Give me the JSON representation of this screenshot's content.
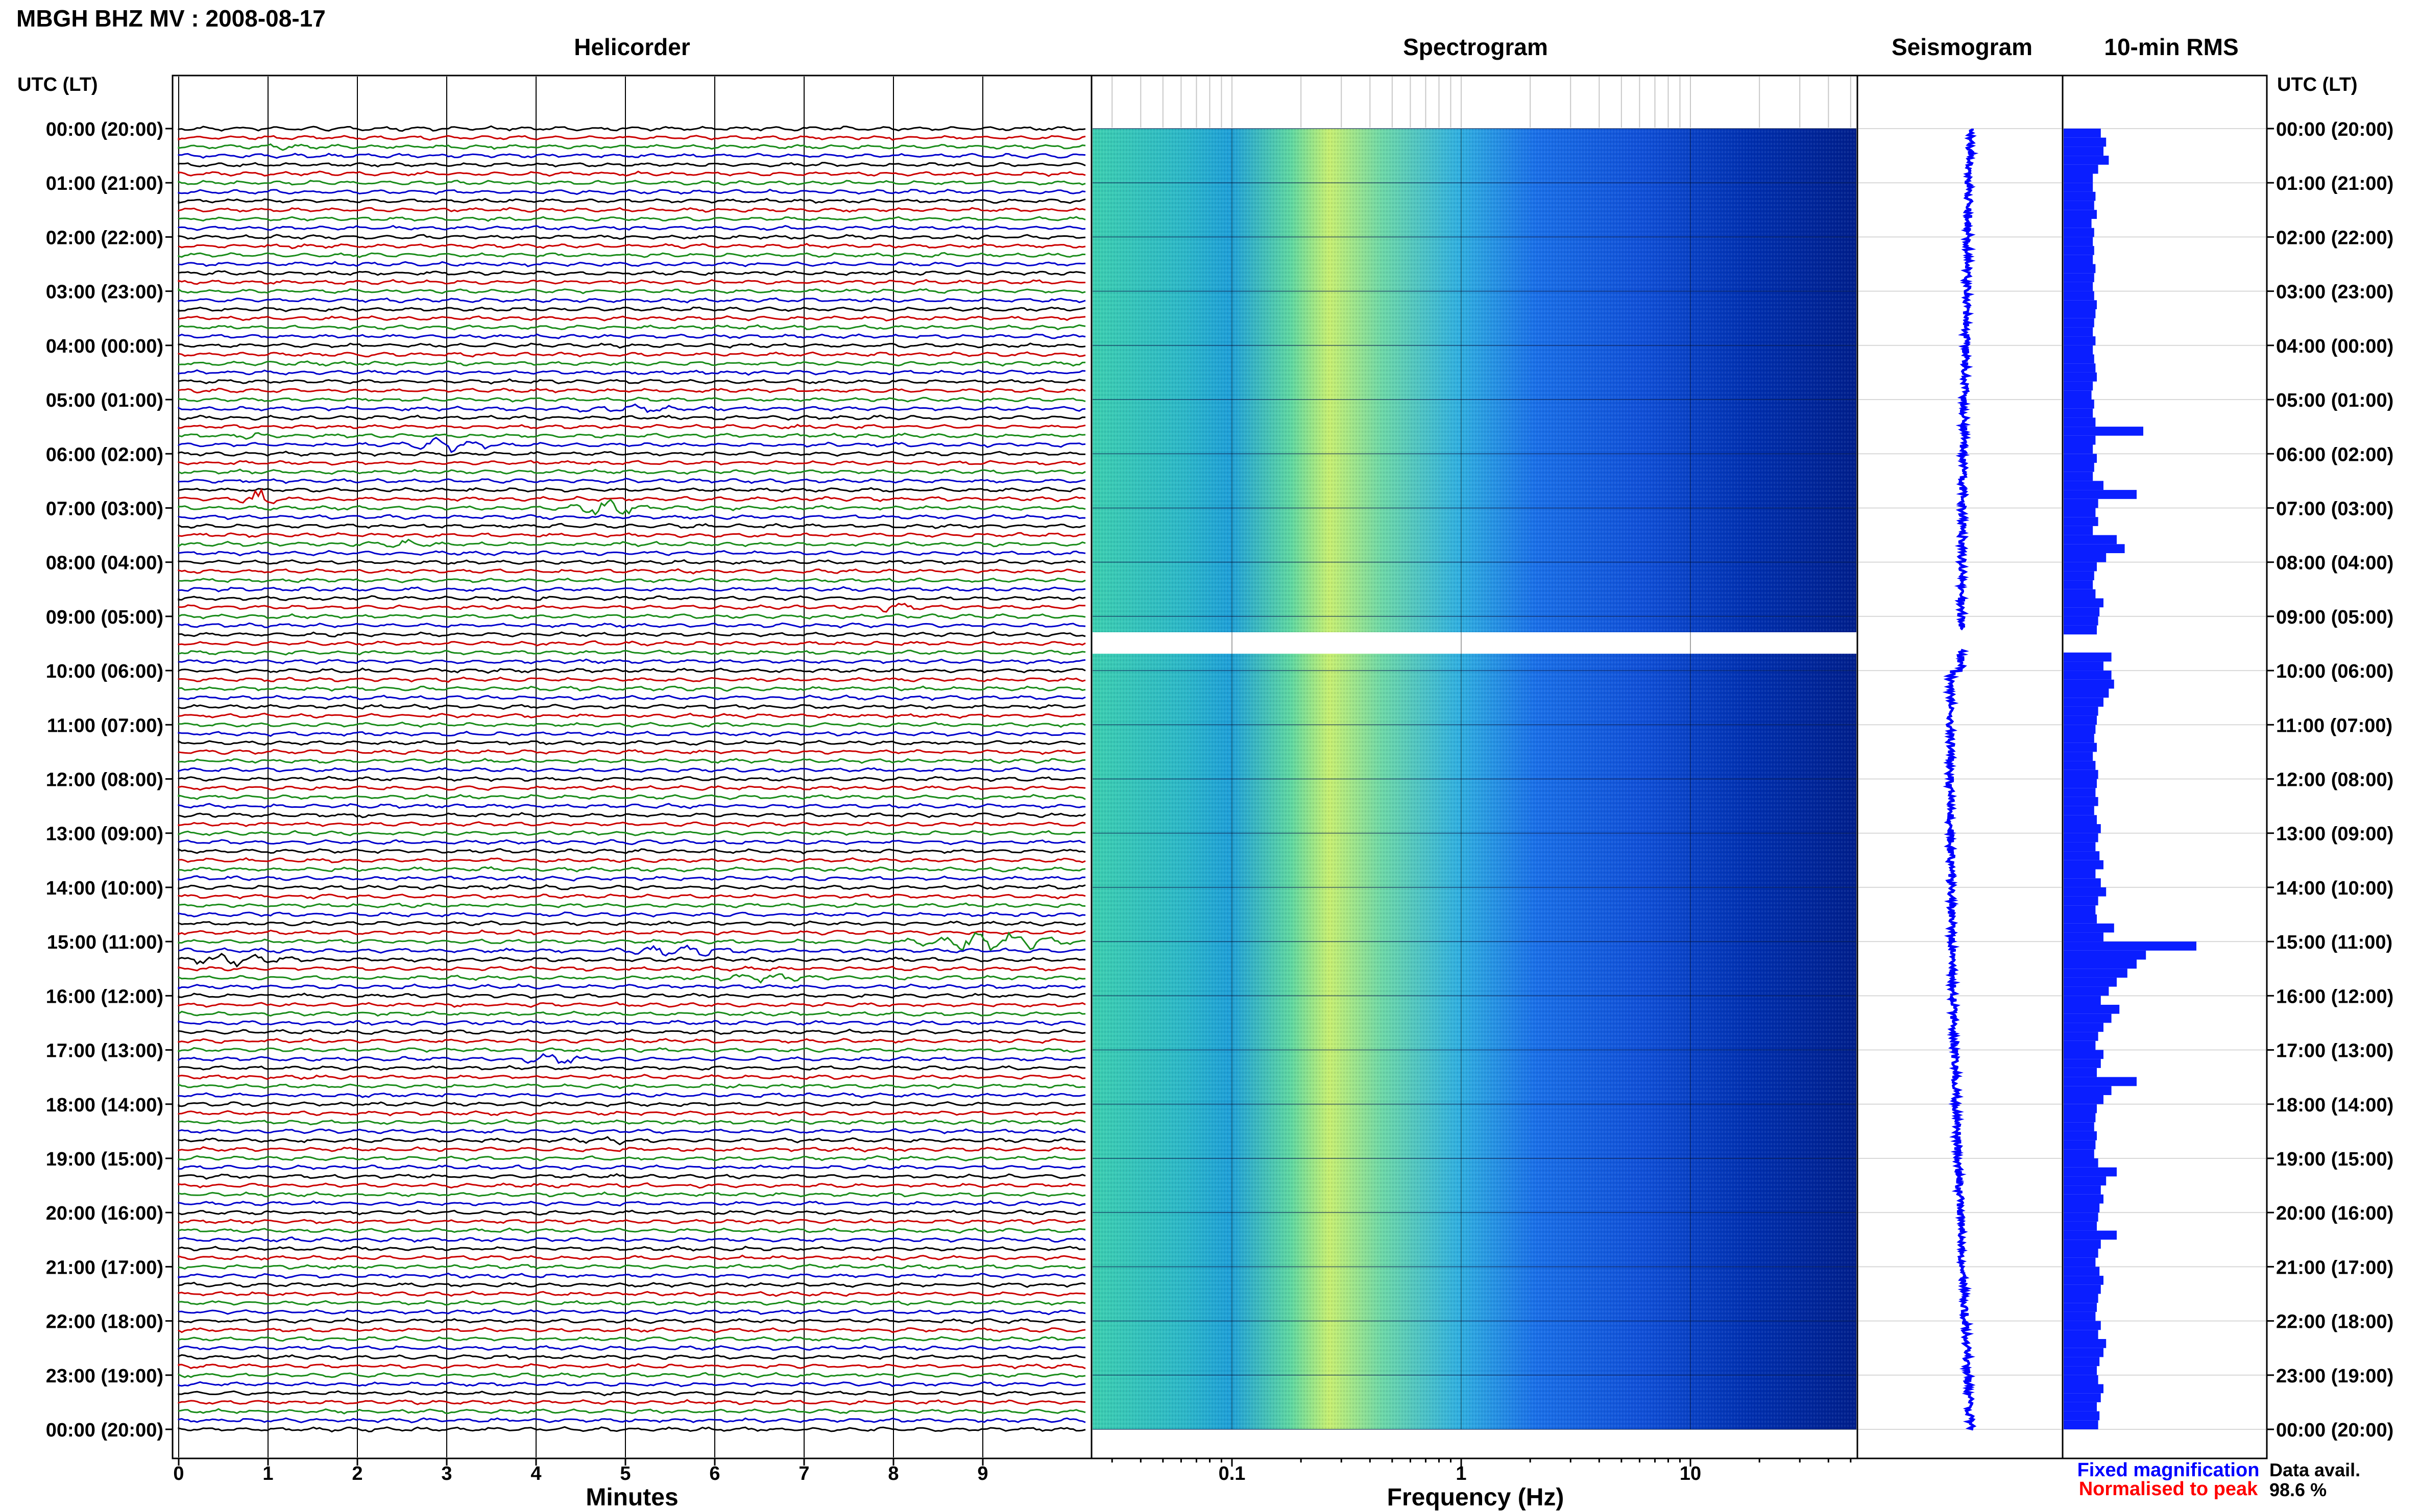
{
  "header": {
    "station_title": "MBGH BHZ MV : 2008-08-17"
  },
  "panels": {
    "helicorder": "Helicorder",
    "spectrogram": "Spectrogram",
    "seismogram": "Seismogram",
    "rms": "10-min RMS"
  },
  "time_axis": {
    "left_label": "UTC (LT)",
    "right_label": "UTC (LT)",
    "ticks": [
      "00:00 (20:00)",
      "01:00 (21:00)",
      "02:00 (22:00)",
      "03:00 (23:00)",
      "04:00 (00:00)",
      "05:00 (01:00)",
      "06:00 (02:00)",
      "07:00 (03:00)",
      "08:00 (04:00)",
      "09:00 (05:00)",
      "10:00 (06:00)",
      "11:00 (07:00)",
      "12:00 (08:00)",
      "13:00 (09:00)",
      "14:00 (10:00)",
      "15:00 (11:00)",
      "16:00 (12:00)",
      "17:00 (13:00)",
      "18:00 (14:00)",
      "19:00 (15:00)",
      "20:00 (16:00)",
      "21:00 (17:00)",
      "22:00 (18:00)",
      "23:00 (19:00)",
      "00:00 (20:00)"
    ]
  },
  "helicorder_axis": {
    "xlabel": "Minutes",
    "ticks": [
      "0",
      "1",
      "2",
      "3",
      "4",
      "5",
      "6",
      "7",
      "8",
      "9"
    ],
    "trace_colors": [
      "#000000",
      "#cc0000",
      "#1a8c1a",
      "#0000cc"
    ]
  },
  "spectrogram_axis": {
    "xlabel": "Frequency (Hz)",
    "ticks": [
      "0.1",
      "1",
      "10"
    ],
    "colors": {
      "low": "#2fd6b0",
      "mid": "#d8f05a",
      "high": "#0028a0"
    }
  },
  "legend": {
    "fixed": "Fixed magnification",
    "fixed_color": "#0000ff",
    "normalised": "Normalised to peak",
    "normalised_color": "#ff0000"
  },
  "availability": {
    "label": "Data avail.",
    "value": "98.6 %"
  },
  "chart_data": {
    "type": "bar",
    "title": "10-min RMS",
    "orientation": "horizontal",
    "categories_unit": "hour of day (UTC)",
    "bin_hours": 0.1667,
    "gap_hours": [
      9.25,
      9.6
    ],
    "series": [
      {
        "name": "10-min RMS",
        "values": [
          0.28,
          0.32,
          0.3,
          0.34,
          0.26,
          0.22,
          0.22,
          0.24,
          0.23,
          0.25,
          0.21,
          0.23,
          0.22,
          0.23,
          0.22,
          0.24,
          0.23,
          0.22,
          0.23,
          0.25,
          0.24,
          0.23,
          0.22,
          0.24,
          0.22,
          0.23,
          0.24,
          0.25,
          0.22,
          0.21,
          0.23,
          0.22,
          0.24,
          0.6,
          0.24,
          0.22,
          0.25,
          0.23,
          0.22,
          0.3,
          0.55,
          0.26,
          0.24,
          0.26,
          0.22,
          0.4,
          0.46,
          0.32,
          0.25,
          0.23,
          0.22,
          0.24,
          0.3,
          0.27,
          0.26,
          0.25,
          0.28,
          0.32,
          0.36,
          0.3,
          0.36,
          0.38,
          0.34,
          0.3,
          0.26,
          0.25,
          0.24,
          0.23,
          0.25,
          0.22,
          0.24,
          0.26,
          0.25,
          0.24,
          0.26,
          0.23,
          0.25,
          0.28,
          0.26,
          0.24,
          0.27,
          0.3,
          0.24,
          0.28,
          0.32,
          0.26,
          0.24,
          0.25,
          0.38,
          0.3,
          1.0,
          0.62,
          0.55,
          0.48,
          0.4,
          0.34,
          0.28,
          0.42,
          0.36,
          0.3,
          0.26,
          0.24,
          0.3,
          0.28,
          0.25,
          0.55,
          0.36,
          0.3,
          0.25,
          0.24,
          0.23,
          0.25,
          0.24,
          0.23,
          0.26,
          0.4,
          0.32,
          0.28,
          0.3,
          0.27,
          0.26,
          0.25,
          0.4,
          0.28,
          0.26,
          0.24,
          0.27,
          0.3,
          0.28,
          0.26,
          0.25,
          0.24,
          0.28,
          0.26,
          0.32,
          0.3,
          0.27,
          0.25,
          0.26,
          0.3,
          0.28,
          0.25,
          0.27,
          0.26
        ],
        "xlim": [
          0,
          1
        ]
      }
    ]
  }
}
